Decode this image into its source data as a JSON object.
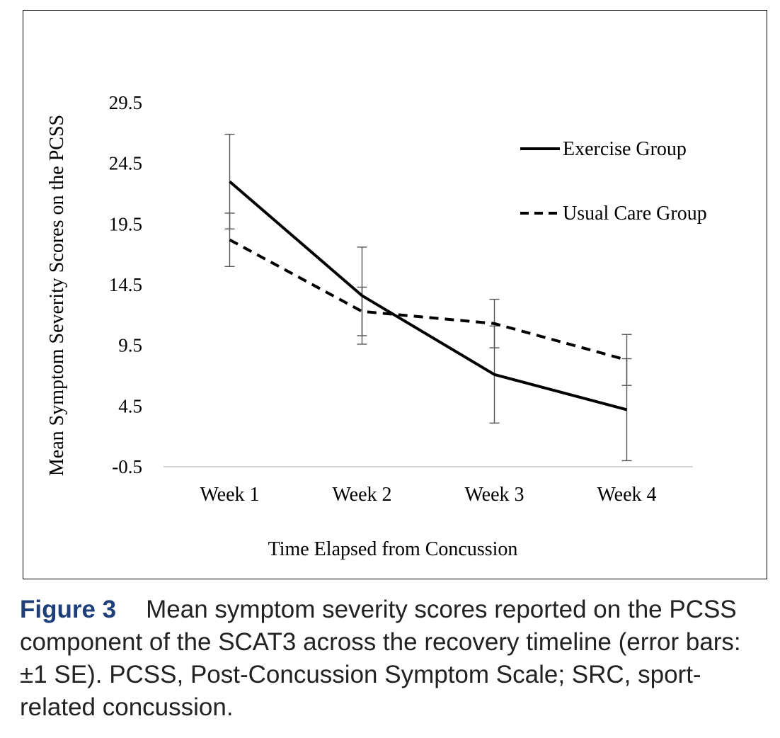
{
  "chart_data": {
    "type": "line",
    "title": "",
    "xlabel": "Time Elapsed from Concussion",
    "ylabel": "Mean Symptom Severity Scores on the PCSS",
    "categories": [
      "Week 1",
      "Week 2",
      "Week 3",
      "Week 4"
    ],
    "ylim": [
      -0.5,
      29.5
    ],
    "yticks": [
      "29.5",
      "24.5",
      "19.5",
      "14.5",
      "9.5",
      "4.5",
      "-0.5"
    ],
    "ytick_values": [
      29.5,
      24.5,
      19.5,
      14.5,
      9.5,
      4.5,
      -0.5
    ],
    "grid": false,
    "legend_position": "top-right",
    "series": [
      {
        "name": "Exercise Group",
        "style": "solid",
        "values": [
          23.0,
          13.6,
          7.1,
          4.2
        ],
        "error": [
          3.9,
          4.0,
          4.0,
          4.2
        ]
      },
      {
        "name": "Usual Care Group",
        "style": "dashed",
        "values": [
          18.2,
          12.3,
          11.3,
          8.3
        ],
        "error": [
          2.2,
          2.0,
          2.0,
          2.1
        ]
      }
    ],
    "line_color": "#000000",
    "errorbar_color": "#555555"
  },
  "caption": {
    "label": "Figure 3",
    "text": "Mean symptom severity scores reported on the PCSS component of the SCAT3 across the recovery timeline (error bars:±1 SE). PCSS, Post-Concussion Symptom Scale; SRC, sport-related concussion."
  }
}
